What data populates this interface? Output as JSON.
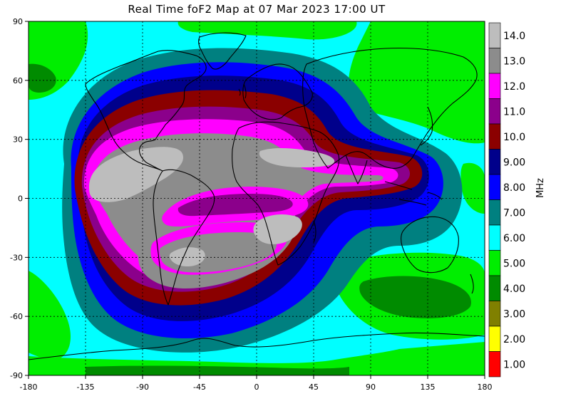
{
  "title": "Real Time foF2 Map at 07 Mar 2023 17:00 UT",
  "x_ticks": [
    "-180",
    "-135",
    "-90",
    "-45",
    "0",
    "45",
    "90",
    "135",
    "180"
  ],
  "y_ticks": [
    "90",
    "60",
    "30",
    "0",
    "-30",
    "-60",
    "-90"
  ],
  "colorbar": {
    "unit": "MHz",
    "levels": [
      {
        "label": "14.0",
        "color": "#bdbdbd"
      },
      {
        "label": "13.0",
        "color": "#8c8c8c"
      },
      {
        "label": "12.0",
        "color": "#ff00ff"
      },
      {
        "label": "11.0",
        "color": "#8b008b"
      },
      {
        "label": "10.0",
        "color": "#8b0000"
      },
      {
        "label": "9.00",
        "color": "#00008b"
      },
      {
        "label": "8.00",
        "color": "#0000ff"
      },
      {
        "label": "7.00",
        "color": "#008080"
      },
      {
        "label": "6.00",
        "color": "#00ffff"
      },
      {
        "label": "5.00",
        "color": "#00ee00"
      },
      {
        "label": "4.00",
        "color": "#008b00"
      },
      {
        "label": "3.00",
        "color": "#808000"
      },
      {
        "label": "2.00",
        "color": "#ffff00"
      },
      {
        "label": "1.00",
        "color": "#ff0000"
      }
    ]
  },
  "map": {
    "lon_range": [
      -180,
      180
    ],
    "lat_range": [
      -90,
      90
    ],
    "grid_lines": true,
    "projection": "equirectangular"
  }
}
